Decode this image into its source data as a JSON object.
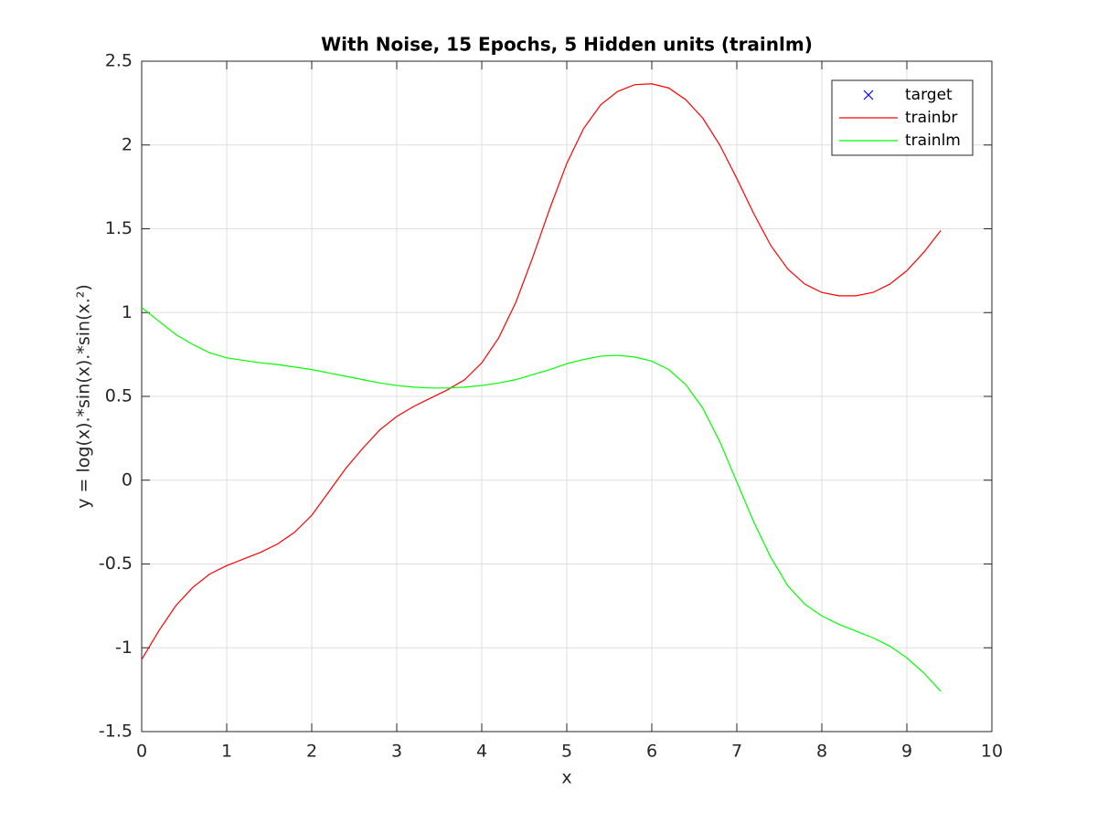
{
  "chart_data": {
    "type": "line",
    "title": "With Noise, 15 Epochs, 5 Hidden units (trainlm)",
    "xlabel": "x",
    "ylabel": "y = log(x).*sin(x).*sin(x.²)",
    "x": [
      0,
      0.2,
      0.4,
      0.6,
      0.8,
      1,
      1.2,
      1.4,
      1.6,
      1.8,
      2,
      2.2,
      2.4,
      2.6,
      2.8,
      3,
      3.2,
      3.4,
      3.6,
      3.8,
      4,
      4.2,
      4.4,
      4.6,
      4.8,
      5,
      5.2,
      5.4,
      5.6,
      5.8,
      6,
      6.2,
      6.4,
      6.6,
      6.8,
      7,
      7.2,
      7.4,
      7.6,
      7.8,
      8,
      8.2,
      8.4,
      8.6,
      8.8,
      9,
      9.2,
      9.4
    ],
    "series": [
      {
        "name": "target",
        "color": "#0000ff",
        "marker": "x",
        "values": [
          null,
          null,
          null,
          null,
          null,
          null,
          null,
          null,
          null,
          null,
          null,
          null,
          null,
          null,
          null,
          null,
          null,
          null,
          null,
          null,
          null,
          null,
          null,
          null,
          null,
          null,
          null,
          null,
          null,
          null,
          null,
          null,
          null,
          null,
          null,
          null,
          null,
          null,
          null,
          null,
          null,
          null,
          null,
          null,
          null,
          null,
          null,
          null
        ]
      },
      {
        "name": "trainbr",
        "color": "#ff0000",
        "values": [
          -1.07,
          -0.9,
          -0.75,
          -0.64,
          -0.56,
          -0.51,
          -0.47,
          -0.43,
          -0.38,
          -0.31,
          -0.21,
          -0.07,
          0.07,
          0.19,
          0.3,
          0.38,
          0.44,
          0.49,
          0.54,
          0.6,
          0.7,
          0.85,
          1.06,
          1.33,
          1.62,
          1.89,
          2.1,
          2.24,
          2.32,
          2.36,
          2.365,
          2.34,
          2.27,
          2.16,
          2,
          1.8,
          1.59,
          1.4,
          1.26,
          1.17,
          1.12,
          1.1,
          1.1,
          1.12,
          1.17,
          1.25,
          1.36,
          1.49
        ]
      },
      {
        "name": "trainlm",
        "color": "#00ff00",
        "values": [
          1.03,
          0.95,
          0.87,
          0.81,
          0.76,
          0.73,
          0.715,
          0.7,
          0.69,
          0.675,
          0.66,
          0.64,
          0.62,
          0.6,
          0.58,
          0.565,
          0.555,
          0.55,
          0.55,
          0.555,
          0.565,
          0.58,
          0.6,
          0.63,
          0.66,
          0.695,
          0.72,
          0.74,
          0.745,
          0.735,
          0.71,
          0.66,
          0.57,
          0.43,
          0.23,
          -0.01,
          -0.25,
          -0.46,
          -0.63,
          -0.74,
          -0.81,
          -0.86,
          -0.9,
          -0.94,
          -0.99,
          -1.06,
          -1.15,
          -1.26
        ]
      }
    ],
    "xlim": [
      0,
      10
    ],
    "xticks": [
      0,
      1,
      2,
      3,
      4,
      5,
      6,
      7,
      8,
      9,
      10
    ],
    "ylim": [
      -1.5,
      2.5
    ],
    "yticks": [
      -1.5,
      -1,
      -0.5,
      0,
      0.5,
      1,
      1.5,
      2,
      2.5
    ],
    "grid": true,
    "legend": "northeast"
  }
}
